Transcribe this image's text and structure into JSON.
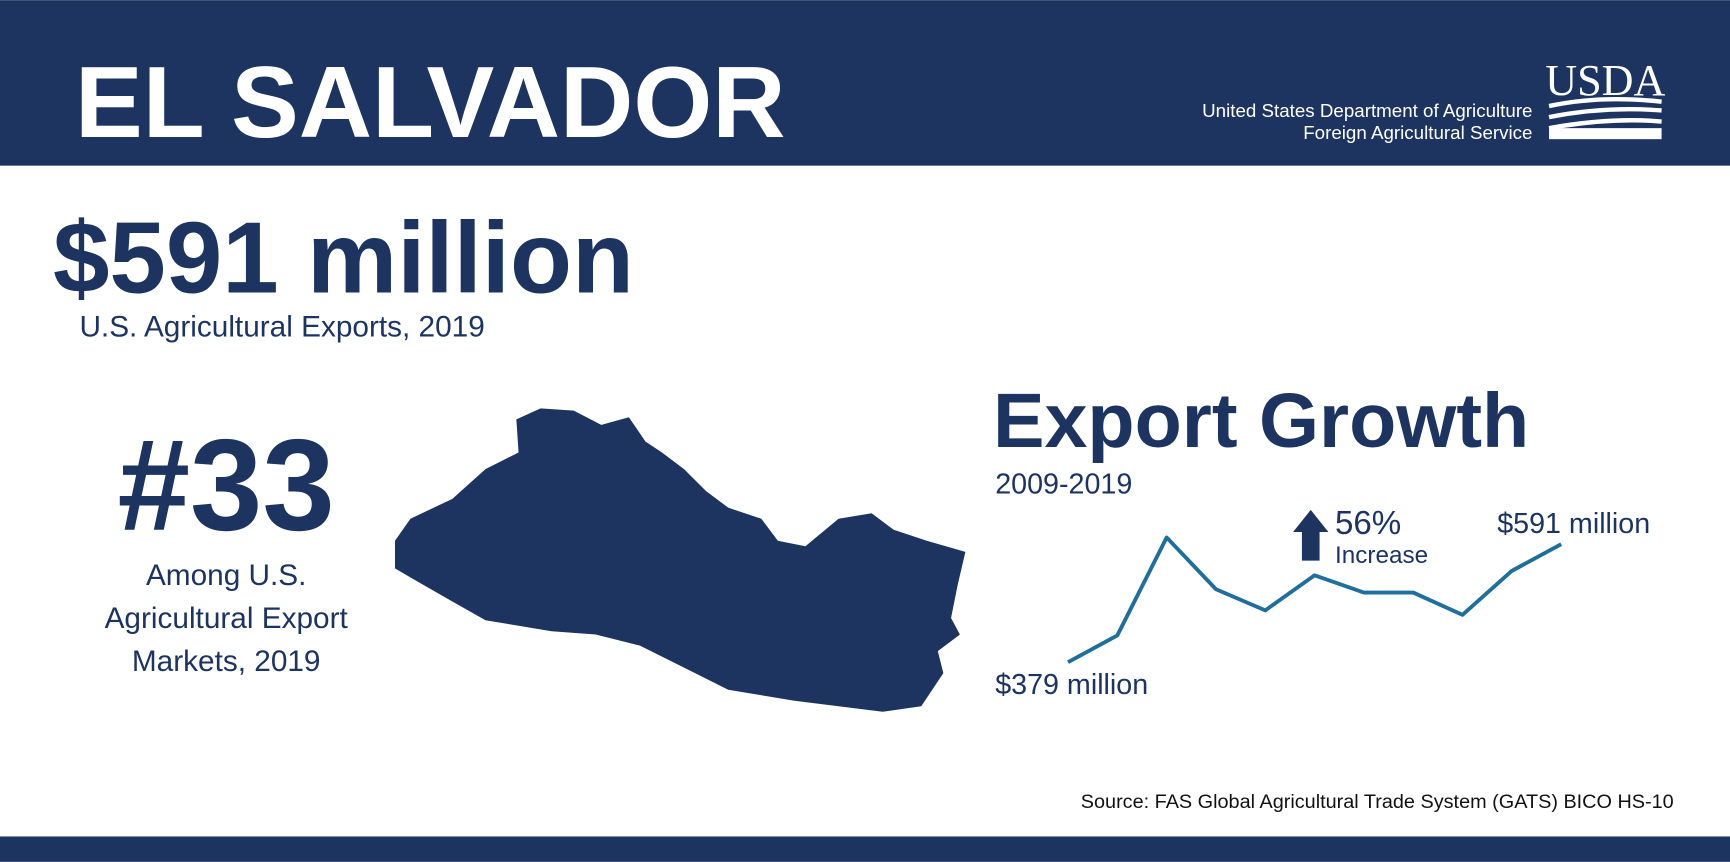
{
  "header": {
    "title": "EL SALVADOR",
    "agency_line1": "United States Department of Agriculture",
    "agency_line2": "Foreign Agricultural Service",
    "logo": "USDA"
  },
  "headline": {
    "value": "$591 million",
    "caption": "U.S. Agricultural Exports, 2019"
  },
  "rank": {
    "value": "#33",
    "caption_lines": [
      "Among U.S.",
      "Agricultural Export",
      "Markets, 2019"
    ]
  },
  "chart_data": {
    "type": "line",
    "title": "Export Growth",
    "subtitle": "2009-2019",
    "values": [
      379,
      427,
      603,
      510,
      472,
      535,
      504,
      504,
      464,
      543,
      591
    ],
    "value_labels": [
      "$379 million",
      null,
      null,
      null,
      null,
      null,
      null,
      null,
      null,
      null,
      "$591 million"
    ],
    "color": "#1f6e9c",
    "annotations": [
      "56%",
      "Increase"
    ]
  },
  "source": "Source: FAS Global Agricultural Trade System (GATS) BICO HS-10"
}
